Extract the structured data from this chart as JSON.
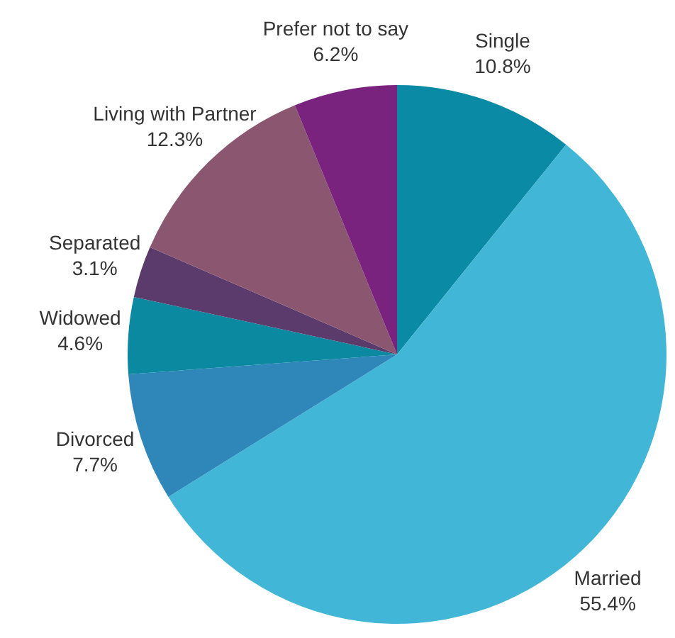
{
  "chart_data": {
    "type": "pie",
    "categories": [
      "Single",
      "Married",
      "Divorced",
      "Widowed",
      "Separated",
      "Living with Partner",
      "Prefer not to say"
    ],
    "values": [
      10.8,
      55.4,
      7.7,
      4.6,
      3.1,
      12.3,
      6.2
    ],
    "value_labels": [
      "10.8%",
      "55.4%",
      "7.7%",
      "4.6%",
      "3.1%",
      "12.3%",
      "6.2%"
    ],
    "colors": [
      "#0b8aa6",
      "#42b6d6",
      "#2f86b9",
      "#0a89a0",
      "#5b3b6b",
      "#8b5670",
      "#79237f"
    ],
    "legend": false
  }
}
